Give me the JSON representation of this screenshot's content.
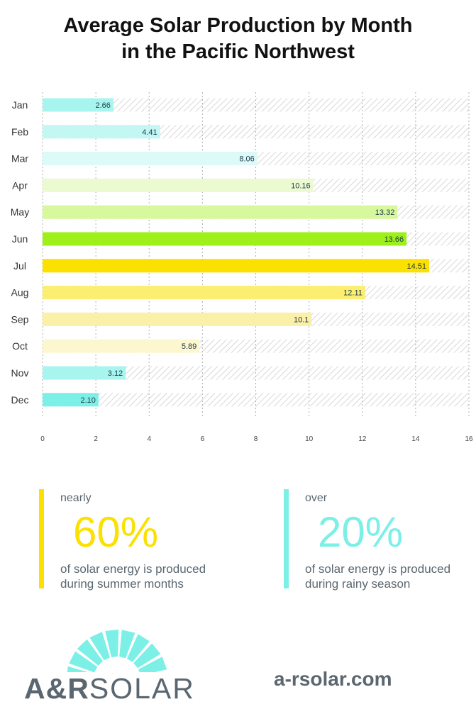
{
  "title_line1": "Average Solar Production by Month",
  "title_line2": "in the Pacific Northwest",
  "chart_data": {
    "type": "bar",
    "orientation": "horizontal",
    "categories": [
      "Jan",
      "Feb",
      "Mar",
      "Apr",
      "May",
      "Jun",
      "Jul",
      "Aug",
      "Sep",
      "Oct",
      "Nov",
      "Dec"
    ],
    "values": [
      2.66,
      4.41,
      8.06,
      10.16,
      13.32,
      13.66,
      14.51,
      12.11,
      10.1,
      5.89,
      3.12,
      2.1
    ],
    "data_labels": [
      "2.66",
      "4.41",
      "8.06",
      "10.16",
      "13.32",
      "13.66",
      "14.51",
      "12.11",
      "10.1",
      "5.89",
      "3.12",
      "2.10"
    ],
    "colors": [
      "#a8f5ef",
      "#c2f7f3",
      "#dcfaf8",
      "#ecfad2",
      "#d8f89e",
      "#9ef01a",
      "#fbe000",
      "#fbee70",
      "#fbf0a8",
      "#fdf7d0",
      "#a8f5ef",
      "#7cefe6"
    ],
    "xlim": [
      0,
      16
    ],
    "xticks": [
      "0",
      "2",
      "4",
      "6",
      "8",
      "10",
      "12",
      "14",
      "16"
    ],
    "grid": "vertical dotted",
    "background_track": "hatched"
  },
  "stats": [
    {
      "prefix": "nearly",
      "value": "60%",
      "line1": "of solar energy is produced",
      "line2": "during summer months",
      "color": "#fbe000"
    },
    {
      "prefix": "over",
      "value": "20%",
      "line1": "of solar energy is produced",
      "line2": "during rainy season",
      "color": "#7cefe6"
    }
  ],
  "logo": {
    "bold": "A&R",
    "light": "SOLAR",
    "color": "#7cefe6"
  },
  "url": "a-rsolar.com"
}
